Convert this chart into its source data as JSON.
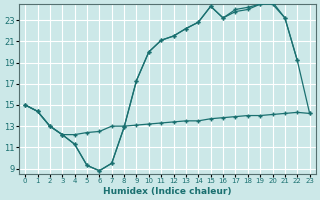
{
  "xlabel": "Humidex (Indice chaleur)",
  "bg_color": "#cce8e8",
  "grid_color": "#ffffff",
  "line_color": "#1a7070",
  "xlim": [
    -0.5,
    23.5
  ],
  "ylim": [
    8.5,
    24.5
  ],
  "xticks": [
    0,
    1,
    2,
    3,
    4,
    5,
    6,
    7,
    8,
    9,
    10,
    11,
    12,
    13,
    14,
    15,
    16,
    17,
    18,
    19,
    20,
    21,
    22,
    23
  ],
  "yticks": [
    9,
    11,
    13,
    15,
    17,
    19,
    21,
    23
  ],
  "line1_x": [
    0,
    1,
    2,
    3,
    4,
    5,
    6,
    7,
    8,
    9,
    10,
    11,
    12,
    13,
    14,
    15,
    16,
    17,
    18,
    19,
    20,
    21,
    22
  ],
  "line1_y": [
    15.0,
    14.4,
    13.0,
    12.2,
    11.3,
    9.3,
    8.8,
    9.5,
    12.9,
    17.3,
    20.0,
    21.1,
    21.5,
    22.2,
    22.8,
    24.3,
    23.2,
    23.8,
    24.0,
    24.5,
    24.5,
    23.2,
    19.2
  ],
  "line2_x": [
    0,
    1,
    2,
    3,
    4,
    5,
    6,
    7,
    8,
    9,
    10,
    11,
    12,
    13,
    14,
    15,
    16,
    17,
    18,
    19,
    20,
    21,
    22,
    23
  ],
  "line2_y": [
    15.0,
    14.4,
    13.0,
    12.2,
    11.3,
    9.3,
    8.8,
    9.5,
    12.9,
    17.3,
    20.0,
    21.1,
    21.5,
    22.2,
    22.8,
    24.3,
    23.2,
    24.0,
    24.2,
    24.5,
    24.7,
    23.2,
    19.2,
    14.2
  ],
  "line3_x": [
    0,
    1,
    2,
    3,
    4,
    5,
    6,
    7,
    8,
    9,
    10,
    11,
    12,
    13,
    14,
    15,
    16,
    17,
    18,
    19,
    20,
    21,
    22,
    23
  ],
  "line3_y": [
    15.0,
    14.4,
    13.0,
    12.2,
    12.2,
    12.4,
    12.5,
    13.0,
    13.0,
    13.1,
    13.2,
    13.3,
    13.4,
    13.5,
    13.5,
    13.7,
    13.8,
    13.9,
    14.0,
    14.0,
    14.1,
    14.2,
    14.3,
    14.2
  ]
}
